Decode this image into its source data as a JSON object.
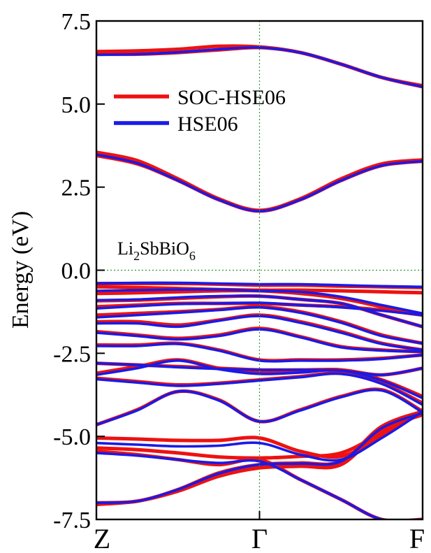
{
  "chart_data": {
    "type": "line",
    "ylabel": "Energy (eV)",
    "ylim": [
      -7.5,
      7.5
    ],
    "xlim": [
      0,
      2
    ],
    "yticks": [
      {
        "value": 7.5,
        "label": "7.5"
      },
      {
        "value": 5.0,
        "label": "5.0"
      },
      {
        "value": 2.5,
        "label": "2.5"
      },
      {
        "value": 0.0,
        "label": "0.0"
      },
      {
        "value": -2.5,
        "label": "-2.5"
      },
      {
        "value": -5.0,
        "label": "-5.0"
      },
      {
        "value": -7.5,
        "label": "-7.5"
      }
    ],
    "kpoints": [
      {
        "x": 0,
        "label": "Z"
      },
      {
        "x": 1,
        "label": "Γ"
      },
      {
        "x": 2,
        "label": "F"
      }
    ],
    "annotation": {
      "prefix": "Li",
      "sub1": "2",
      "mid": "SbBiO",
      "sub2": "6"
    },
    "legend_position": "upper-left",
    "grid": "dotted green guides at Γ and at 0 eV",
    "x_sample": [
      0,
      0.25,
      0.5,
      0.75,
      1.0,
      1.25,
      1.5,
      1.75,
      2.0
    ],
    "series": [
      {
        "name": "SOC-HSE06",
        "color": "#ee1111",
        "bands": [
          [
            6.58,
            6.6,
            6.65,
            6.74,
            6.72,
            6.55,
            6.2,
            5.8,
            5.55
          ],
          [
            6.5,
            6.5,
            6.55,
            6.63,
            6.7,
            6.55,
            6.2,
            5.8,
            5.52
          ],
          [
            3.55,
            3.3,
            2.75,
            2.15,
            1.8,
            2.15,
            2.75,
            3.2,
            3.32
          ],
          [
            3.45,
            3.2,
            2.7,
            2.12,
            1.78,
            2.12,
            2.7,
            3.15,
            3.28
          ],
          [
            -0.4,
            -0.4,
            -0.4,
            -0.42,
            -0.45,
            -0.45,
            -0.48,
            -0.5,
            -0.52
          ],
          [
            -0.5,
            -0.52,
            -0.55,
            -0.58,
            -0.6,
            -0.6,
            -0.62,
            -0.65,
            -0.68
          ],
          [
            -0.7,
            -0.68,
            -0.65,
            -0.62,
            -0.62,
            -0.7,
            -0.85,
            -1.1,
            -1.35
          ],
          [
            -0.92,
            -0.9,
            -0.85,
            -0.8,
            -0.78,
            -0.88,
            -1.0,
            -1.35,
            -1.7
          ],
          [
            -1.1,
            -1.05,
            -1.0,
            -1.0,
            -1.0,
            -1.05,
            -1.1,
            -1.2,
            -1.35
          ],
          [
            -1.35,
            -1.3,
            -1.25,
            -1.18,
            -1.1,
            -1.25,
            -1.55,
            -1.95,
            -2.2
          ],
          [
            -1.55,
            -1.55,
            -1.65,
            -1.5,
            -1.35,
            -1.55,
            -1.85,
            -2.2,
            -2.4
          ],
          [
            -1.85,
            -1.95,
            -2.05,
            -1.95,
            -1.75,
            -2.0,
            -2.3,
            -2.4,
            -2.45
          ],
          [
            -2.25,
            -2.25,
            -2.2,
            -2.4,
            -2.7,
            -2.7,
            -2.7,
            -2.65,
            -2.55
          ],
          [
            -2.8,
            -2.85,
            -2.9,
            -2.95,
            -3.0,
            -3.0,
            -3.0,
            -3.15,
            -2.95
          ],
          [
            -3.1,
            -2.9,
            -2.7,
            -2.95,
            -3.1,
            -3.05,
            -3.0,
            -3.3,
            -3.8
          ],
          [
            -3.25,
            -3.35,
            -3.45,
            -3.4,
            -3.3,
            -3.2,
            -3.1,
            -3.4,
            -4.0
          ],
          [
            -4.65,
            -4.2,
            -3.65,
            -3.9,
            -4.55,
            -4.2,
            -3.8,
            -3.6,
            -4.25
          ],
          [
            -5.05,
            -5.08,
            -5.12,
            -5.12,
            -5.05,
            -5.45,
            -5.6,
            -5.0,
            -4.2
          ],
          [
            -5.35,
            -5.4,
            -5.5,
            -5.62,
            -5.65,
            -5.6,
            -5.5,
            -4.9,
            -4.3
          ],
          [
            -7.0,
            -6.95,
            -6.6,
            -6.1,
            -5.85,
            -5.8,
            -5.75,
            -4.7,
            -4.25
          ],
          [
            -7.05,
            -6.95,
            -6.65,
            -6.2,
            -5.95,
            -5.9,
            -5.85,
            -4.8,
            -4.35
          ],
          [
            -5.45,
            -5.55,
            -5.7,
            -5.85,
            -5.7,
            -6.3,
            -6.9,
            -7.5,
            -7.5
          ]
        ]
      },
      {
        "name": "HSE06",
        "color": "#1a1ae6",
        "bands": [
          [
            6.48,
            6.5,
            6.56,
            6.65,
            6.7,
            6.55,
            6.2,
            5.8,
            5.52
          ],
          [
            3.48,
            3.22,
            2.7,
            2.12,
            1.78,
            2.12,
            2.7,
            3.15,
            3.28
          ],
          [
            -0.4,
            -0.38,
            -0.38,
            -0.4,
            -0.42,
            -0.42,
            -0.45,
            -0.48,
            -0.5
          ],
          [
            -0.62,
            -0.6,
            -0.58,
            -0.58,
            -0.62,
            -0.65,
            -0.8,
            -1.05,
            -1.3
          ],
          [
            -0.9,
            -0.88,
            -0.82,
            -0.78,
            -0.78,
            -0.88,
            -1.0,
            -1.35,
            -1.7
          ],
          [
            -1.15,
            -1.08,
            -1.02,
            -1.0,
            -0.98,
            -1.05,
            -1.12,
            -1.22,
            -1.35
          ],
          [
            -1.42,
            -1.35,
            -1.28,
            -1.2,
            -1.12,
            -1.28,
            -1.58,
            -1.98,
            -2.2
          ],
          [
            -1.6,
            -1.6,
            -1.7,
            -1.52,
            -1.38,
            -1.58,
            -1.88,
            -2.22,
            -2.4
          ],
          [
            -1.88,
            -1.98,
            -2.08,
            -1.98,
            -1.78,
            -2.02,
            -2.32,
            -2.42,
            -2.45
          ],
          [
            -2.28,
            -2.28,
            -2.22,
            -2.42,
            -2.72,
            -2.72,
            -2.72,
            -2.67,
            -2.55
          ],
          [
            -2.8,
            -2.85,
            -2.92,
            -2.97,
            -3.0,
            -3.0,
            -3.02,
            -3.15,
            -2.95
          ],
          [
            -3.15,
            -2.95,
            -2.72,
            -2.98,
            -3.12,
            -3.08,
            -3.02,
            -3.32,
            -3.85
          ],
          [
            -3.28,
            -3.38,
            -3.48,
            -3.42,
            -3.32,
            -3.22,
            -3.12,
            -3.42,
            -4.05
          ],
          [
            -4.65,
            -4.22,
            -3.65,
            -3.92,
            -4.55,
            -4.22,
            -3.82,
            -3.62,
            -4.28
          ],
          [
            -5.2,
            -5.25,
            -5.3,
            -5.28,
            -5.2,
            -5.55,
            -5.7,
            -5.05,
            -4.25
          ],
          [
            -7.0,
            -6.95,
            -6.6,
            -6.12,
            -5.85,
            -5.82,
            -5.75,
            -4.75,
            -4.3
          ],
          [
            -5.5,
            -5.58,
            -5.7,
            -5.8,
            -5.75,
            -6.3,
            -6.9,
            -7.5,
            -7.5
          ]
        ]
      }
    ]
  }
}
